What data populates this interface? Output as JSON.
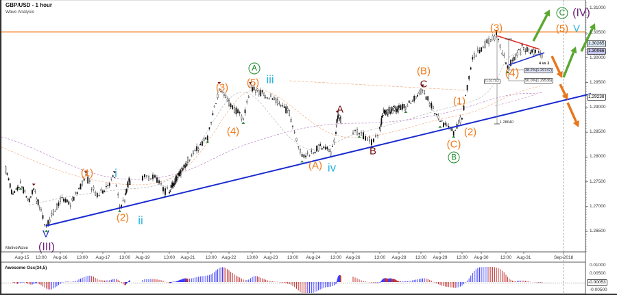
{
  "header": {
    "title": "GBP/USD - 1 hour",
    "subtitle": "Wave Analysis",
    "study_label": "MotiveWave"
  },
  "chart_data": {
    "type": "candlestick",
    "symbol": "GBP/USD",
    "timeframe": "1 hour",
    "ylim": [
      1.2625,
      1.3115
    ],
    "yticks": [
      "1.31000",
      "1.30500",
      "1.30000",
      "1.29500",
      "1.29000",
      "1.28500",
      "1.28000",
      "1.27500",
      "1.27000",
      "1.26500"
    ],
    "xticks": [
      {
        "label": "Aug-15",
        "t": "2018-08-15T00:00"
      },
      {
        "label": "13:00",
        "t": "2018-08-15T13:00"
      },
      {
        "label": "Aug-16",
        "t": "2018-08-16T00:00"
      },
      {
        "label": "13:00",
        "t": "2018-08-16T13:00"
      },
      {
        "label": "Aug-17",
        "t": "2018-08-17T00:00"
      },
      {
        "label": "13:00",
        "t": "2018-08-17T13:00"
      },
      {
        "label": "Aug-19",
        "t": "2018-08-19T00:00"
      },
      {
        "label": "13:00",
        "t": "2018-08-19T13:00"
      },
      {
        "label": "Aug-21",
        "t": "2018-08-21T00:00"
      },
      {
        "label": "13:00",
        "t": "2018-08-21T13:00"
      },
      {
        "label": "Aug-22",
        "t": "2018-08-22T00:00"
      },
      {
        "label": "13:00",
        "t": "2018-08-22T13:00"
      },
      {
        "label": "Aug-23",
        "t": "2018-08-23T00:00"
      },
      {
        "label": "13:00",
        "t": "2018-08-23T13:00"
      },
      {
        "label": "Aug-24",
        "t": "2018-08-24T00:00"
      },
      {
        "label": "13:00",
        "t": "2018-08-24T13:00"
      },
      {
        "label": "Aug-26",
        "t": "2018-08-26T00:00"
      },
      {
        "label": "13:00",
        "t": "2018-08-26T13:00"
      },
      {
        "label": "Aug-28",
        "t": "2018-08-28T00:00"
      },
      {
        "label": "13:00",
        "t": "2018-08-28T13:00"
      },
      {
        "label": "Aug-29",
        "t": "2018-08-29T00:00"
      },
      {
        "label": "13:00",
        "t": "2018-08-29T13:00"
      },
      {
        "label": "Aug-30",
        "t": "2018-08-30T00:00"
      },
      {
        "label": "13:00",
        "t": "2018-08-30T13:00"
      },
      {
        "label": "Aug-31",
        "t": "2018-08-31T00:00"
      },
      {
        "label": "Sep-2018",
        "t": "2018-09-01T00:00"
      }
    ],
    "price_path": [
      {
        "t": "2018-08-14T13:00",
        "p": 1.2775
      },
      {
        "t": "2018-08-14T18:00",
        "p": 1.272
      },
      {
        "t": "2018-08-14T23:00",
        "p": 1.2745,
        "mark": "low"
      },
      {
        "t": "2018-08-15T05:00",
        "p": 1.271
      },
      {
        "t": "2018-08-15T08:00",
        "p": 1.2735,
        "mark": "high"
      },
      {
        "t": "2018-08-15T16:00",
        "p": 1.266,
        "mark": "low"
      },
      {
        "t": "2018-08-16T00:00",
        "p": 1.2715
      },
      {
        "t": "2018-08-16T06:00",
        "p": 1.2705
      },
      {
        "t": "2018-08-16T15:00",
        "p": 1.276,
        "mark": "high"
      },
      {
        "t": "2018-08-16T21:00",
        "p": 1.272
      },
      {
        "t": "2018-08-17T07:00",
        "p": 1.276,
        "mark": "high"
      },
      {
        "t": "2018-08-17T10:00",
        "p": 1.27,
        "mark": "low"
      },
      {
        "t": "2018-08-17T20:00",
        "p": 1.275
      },
      {
        "t": "2018-08-19T06:00",
        "p": 1.276
      },
      {
        "t": "2018-08-19T11:00",
        "p": 1.273,
        "mark": "low"
      },
      {
        "t": "2018-08-20T23:00",
        "p": 1.279
      },
      {
        "t": "2018-08-21T11:00",
        "p": 1.284,
        "mark": "low"
      },
      {
        "t": "2018-08-21T18:00",
        "p": 1.294,
        "mark": "high"
      },
      {
        "t": "2018-08-22T02:00",
        "p": 1.29
      },
      {
        "t": "2018-08-22T08:00",
        "p": 1.2878,
        "mark": "low"
      },
      {
        "t": "2018-08-22T12:00",
        "p": 1.294,
        "mark": "high"
      },
      {
        "t": "2018-08-23T00:00",
        "p": 1.292
      },
      {
        "t": "2018-08-23T11:00",
        "p": 1.289
      },
      {
        "t": "2018-08-23T18:00",
        "p": 1.28,
        "mark": "low"
      },
      {
        "t": "2018-08-24T04:00",
        "p": 1.282
      },
      {
        "t": "2018-08-24T10:00",
        "p": 1.281,
        "mark": "low"
      },
      {
        "t": "2018-08-24T16:00",
        "p": 1.2882,
        "mark": "high"
      },
      {
        "t": "2018-08-26T03:00",
        "p": 1.285,
        "mark": "low"
      },
      {
        "t": "2018-08-26T09:00",
        "p": 1.283,
        "mark": "low"
      },
      {
        "t": "2018-08-26T19:00",
        "p": 1.289
      },
      {
        "t": "2018-08-28T04:00",
        "p": 1.29,
        "mark": "low"
      },
      {
        "t": "2018-08-28T14:00",
        "p": 1.2935,
        "mark": "high"
      },
      {
        "t": "2018-08-29T00:00",
        "p": 1.287,
        "mark": "low"
      },
      {
        "t": "2018-08-29T08:00",
        "p": 1.285,
        "mark": "low"
      },
      {
        "t": "2018-08-29T13:00",
        "p": 1.288
      },
      {
        "t": "2018-08-29T19:00",
        "p": 1.3
      },
      {
        "t": "2018-08-30T04:00",
        "p": 1.3035
      },
      {
        "t": "2018-08-30T08:00",
        "p": 1.3045,
        "mark": "high"
      },
      {
        "t": "2018-08-30T14:00",
        "p": 1.298,
        "mark": "low"
      },
      {
        "t": "2018-08-30T23:00",
        "p": 1.302
      },
      {
        "t": "2018-08-31T11:30",
        "p": 1.30066
      }
    ],
    "price_tags": {
      "ask": "1.30265",
      "last": "1.30066",
      "trendline": "1.29238"
    },
    "resistance_level": 1.3052,
    "wave_labels": {
      "w3_top": "(3)",
      "c_green": "C",
      "iv_purple": "(IV)",
      "w5_target": "(5)",
      "v_cyan": "V",
      "w4": "(4)",
      "b_orange": "(B)",
      "c_maroon": "C",
      "w1b": "(1)",
      "w2b": "(2)",
      "c_orange": "(C)",
      "b_green": "B",
      "a_maroon": "A",
      "b_maroon": "B",
      "a_orange": "(A)",
      "iv_cyan": "iv",
      "a_green": "A",
      "iii_cyan": "iii",
      "w5a": "(5)",
      "w3a": "(3)",
      "w4a": "(4)",
      "w1a": "(1)",
      "i_cyan": "i",
      "w2a": "(2)",
      "ii_cyan": "ii",
      "v_blue": "V",
      "iii_purple": "(III)"
    },
    "fib": {
      "title": "4 vs 3",
      "level_382": "38.2%(1.29747)",
      "level_500": "50.0%(1.29536)",
      "range": "0.01792",
      "low": "1.28640"
    },
    "oscillator": {
      "name": "Awesome Osc(34,5)",
      "yticks": [
        "0.01000",
        "0.00500",
        "-0.00500"
      ],
      "last": "-0.00053",
      "up_color": "#3a3aff",
      "down_color": "#c03030"
    },
    "colors": {
      "resistance": "#f07a1a",
      "trendline": "#1a2bd0",
      "triangle_top": "#e02020",
      "bull_arrow": "#5aa832",
      "bear_arrow": "#e8761c"
    }
  }
}
